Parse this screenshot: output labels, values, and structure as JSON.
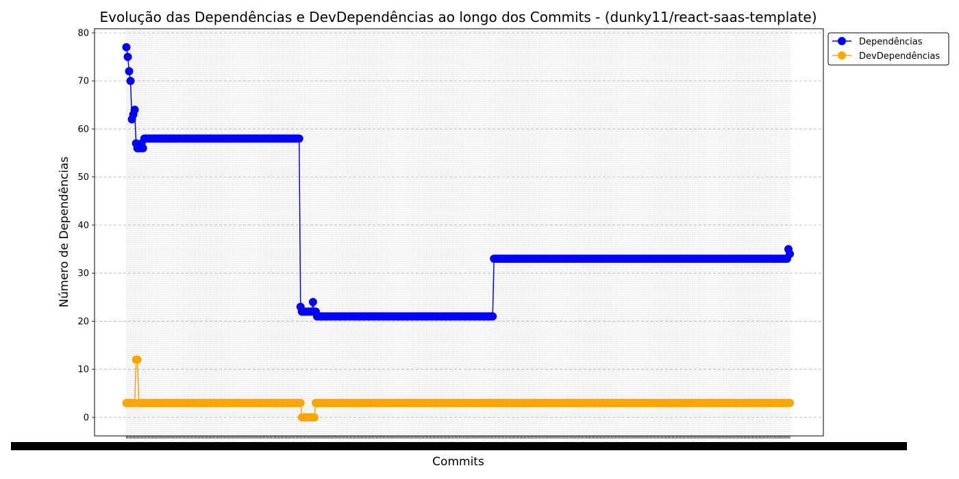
{
  "chart_data": {
    "type": "line",
    "title": "Evolução das Dependências e DevDependências ao longo dos Commits - (dunky11/react-saas-template)",
    "xlabel": "Commits",
    "ylabel": "Número de Dependências",
    "ylim": [
      -3.85,
      80.85
    ],
    "yticks": [
      0,
      10,
      20,
      30,
      40,
      50,
      60,
      70,
      80
    ],
    "grid": true,
    "legend_position": "upper-right-outside",
    "series": [
      {
        "name": "Dependências",
        "color": "#0000ff",
        "segments": [
          {
            "from": 0,
            "to": 0,
            "value": 77
          },
          {
            "from": 1,
            "to": 1,
            "value": 75
          },
          {
            "from": 2,
            "to": 2,
            "value": 72
          },
          {
            "from": 3,
            "to": 3,
            "value": 70
          },
          {
            "from": 4,
            "to": 4,
            "value": 62
          },
          {
            "from": 5,
            "to": 5,
            "value": 63
          },
          {
            "from": 6,
            "to": 6,
            "value": 64
          },
          {
            "from": 7,
            "to": 7,
            "value": 57
          },
          {
            "from": 8,
            "to": 10,
            "value": 56
          },
          {
            "from": 11,
            "to": 11,
            "value": 57
          },
          {
            "from": 12,
            "to": 12,
            "value": 56
          },
          {
            "from": 13,
            "to": 125,
            "value": 58
          },
          {
            "from": 126,
            "to": 126,
            "value": 23
          },
          {
            "from": 127,
            "to": 134,
            "value": 22
          },
          {
            "from": 135,
            "to": 135,
            "value": 24
          },
          {
            "from": 136,
            "to": 137,
            "value": 22
          },
          {
            "from": 138,
            "to": 265,
            "value": 21
          },
          {
            "from": 266,
            "to": 478,
            "value": 33
          },
          {
            "from": 479,
            "to": 479,
            "value": 35
          },
          {
            "from": 480,
            "to": 480,
            "value": 34
          }
        ]
      },
      {
        "name": "DevDependências",
        "color": "#ffa500",
        "segments": [
          {
            "from": 0,
            "to": 6,
            "value": 3
          },
          {
            "from": 7,
            "to": 8,
            "value": 12
          },
          {
            "from": 9,
            "to": 126,
            "value": 3
          },
          {
            "from": 127,
            "to": 136,
            "value": 0
          },
          {
            "from": 137,
            "to": 480,
            "value": 3
          }
        ]
      }
    ],
    "x_commit_count": 481
  },
  "legend": {
    "items": [
      "Dependências",
      "DevDependências"
    ]
  }
}
